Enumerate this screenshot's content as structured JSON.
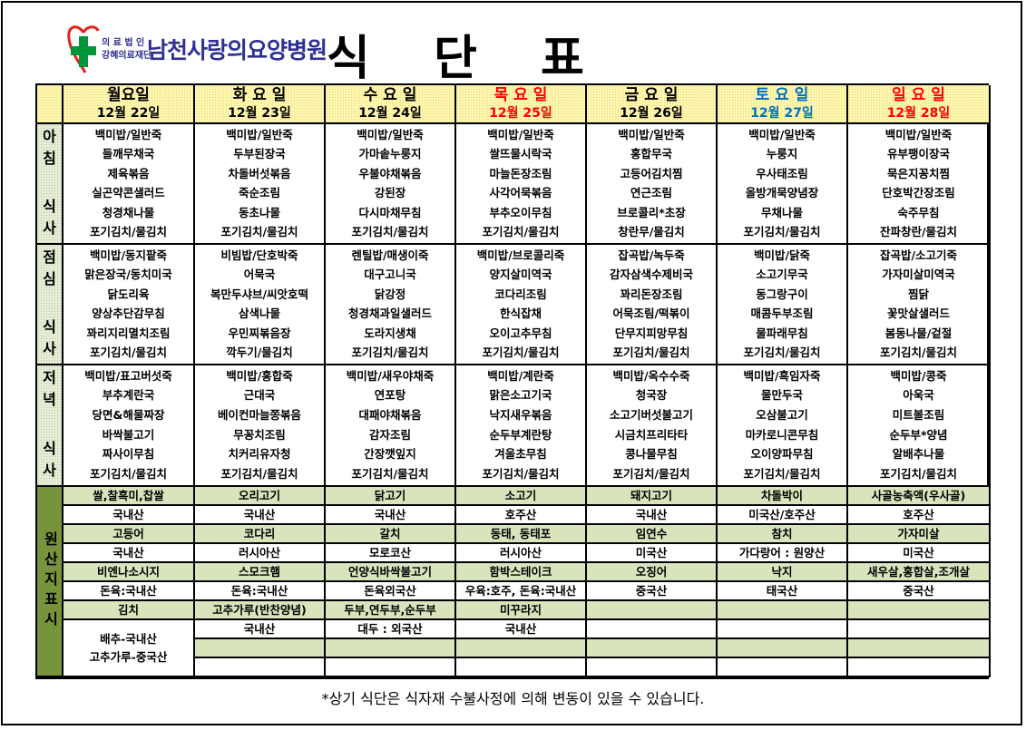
{
  "logo": {
    "small_top": "의 료 법 인",
    "small_bottom": "강혜의료재단",
    "name": "남천사랑의요양병원"
  },
  "title": [
    "식",
    "단",
    "표"
  ],
  "colors": {
    "header_bg": "#fff6b0",
    "origin_label_bg": "#77933c",
    "origin_item_bg": "#d8e4bc",
    "holiday_red": "#ff0000",
    "saturday_blue": "#0070c0",
    "logo_navy": "#2e3192"
  },
  "days": [
    {
      "name": "월요일",
      "date": "12월 22일",
      "color": "#000000"
    },
    {
      "name": "화 요 일",
      "date": "12월 23일",
      "color": "#000000"
    },
    {
      "name": "수 요 일",
      "date": "12월 24일",
      "color": "#000000"
    },
    {
      "name": "목 요 일",
      "date": "12월 25일",
      "color": "#ff0000"
    },
    {
      "name": "금 요 일",
      "date": "12월 26일",
      "color": "#000000"
    },
    {
      "name": "토 요 일",
      "date": "12월 27일",
      "color": "#0070c0"
    },
    {
      "name": "일 요 일",
      "date": "12월 28일",
      "color": "#ff0000"
    }
  ],
  "meals": [
    {
      "label_top": "아\n침",
      "label_bottom": "식\n사",
      "menus": [
        [
          "백미밥/일반죽",
          "들깨무채국",
          "제육볶음",
          "실곤약콘샐러드",
          "청경채나물",
          "포기김치/물김치"
        ],
        [
          "백미밥/일반죽",
          "두부된장국",
          "차돌버섯볶음",
          "죽순조림",
          "동초나물",
          "포기김치/물김치"
        ],
        [
          "백미밥/일반죽",
          "가마솥누룽지",
          "우불야채볶음",
          "강된장",
          "다시마채무침",
          "포기김치/물김치"
        ],
        [
          "백미밥/일반죽",
          "쌀뜨물시락국",
          "마늘돈장조림",
          "사각어묵볶음",
          "부추오이무침",
          "포기김치/물김치"
        ],
        [
          "백미밥/일반죽",
          "홍합무국",
          "고등어김치찜",
          "연근조림",
          "브로콜리*초장",
          "창란무/물김치"
        ],
        [
          "백미밥/일반죽",
          "누룽지",
          "우사태조림",
          "올방개묵양념장",
          "무채나물",
          "포기김치/물김치"
        ],
        [
          "백미밥/일반죽",
          "유부팽이장국",
          "묵은지꽁치찜",
          "단호박간장조림",
          "숙주무침",
          "잔파창란/물김치"
        ]
      ]
    },
    {
      "label_top": "점\n심",
      "label_bottom": "식\n사",
      "menus": [
        [
          "백미밥/동지팥죽",
          "맑은장국/동치미국",
          "닭도리육",
          "양상추단감무침",
          "꽈리지리멸치조림",
          "포기김치/물김치"
        ],
        [
          "비빔밥/단호박죽",
          "어묵국",
          "복만두샤브/씨앗호떡",
          "삼색나물",
          "우민찌볶음장",
          "깍두기/물김치"
        ],
        [
          "렌틸밥/매생이죽",
          "대구고니국",
          "닭강정",
          "청경채과일샐러드",
          "도라지생채",
          "포기김치/물김치"
        ],
        [
          "백미밥/브로콜리죽",
          "양지살미역국",
          "코다리조림",
          "한식잡채",
          "오이고추무침",
          "포기김치/물김치"
        ],
        [
          "잡곡밥/녹두죽",
          "감자삼색수제비국",
          "꽈리돈장조림",
          "어묵조림/떡볶이",
          "단무지피망무침",
          "포기김치/물김치"
        ],
        [
          "백미밥/닭죽",
          "소고기무국",
          "동그랑구이",
          "매콤두부조림",
          "물파래무침",
          "포기김치/물김치"
        ],
        [
          "잡곡밥/소고기죽",
          "가자미살미역국",
          "찜닭",
          "꽃맛살샐러드",
          "봄동나물/겉절",
          "포기김치/물김치"
        ]
      ]
    },
    {
      "label_top": "저\n녁",
      "label_bottom": "식\n사",
      "menus": [
        [
          "백미밥/표고버섯죽",
          "부추계란국",
          "당면&해물짜장",
          "바싹불고기",
          "짜사이무침",
          "포기김치/물김치"
        ],
        [
          "백미밥/홍합죽",
          "근대국",
          "베이컨마늘쫑볶음",
          "무꽁치조림",
          "치커리유자청",
          "포기김치/물김치"
        ],
        [
          "백미밥/새우야채죽",
          "연포탕",
          "대패야채볶음",
          "감자조림",
          "간장깻잎지",
          "포기김치/물김치"
        ],
        [
          "백미밥/계란죽",
          "맑은소고기국",
          "낙지새우볶음",
          "순두부계란탕",
          "겨울초무침",
          "포기김치/물김치"
        ],
        [
          "백미밥/옥수수죽",
          "청국장",
          "소고기버섯불고기",
          "시금치프리타타",
          "콩나물무침",
          "포기김치/물김치"
        ],
        [
          "백미밥/흑임자죽",
          "물만두국",
          "오삼불고기",
          "마카로니콘무침",
          "오이양파무침",
          "포기김치/물김치"
        ],
        [
          "백미밥/콩죽",
          "아욱국",
          "미트볼조림",
          "순두부*양념",
          "알배추나물",
          "포기김치/물김치"
        ]
      ]
    }
  ],
  "origin": {
    "label": "원산지표시",
    "columns": [
      [
        [
          "쌀,찰흑미,찹쌀",
          "국내산"
        ],
        [
          "고등어",
          "국내산"
        ],
        [
          "비엔나소시지",
          "돈육:국내산"
        ],
        [
          "김치",
          "배추-국내산\n고추가루-중국산"
        ]
      ],
      [
        [
          "오리고기",
          "국내산"
        ],
        [
          "코다리",
          "러시아산"
        ],
        [
          "스모크햄",
          "돈육:국내산"
        ],
        [
          "고추가루(반찬양념)",
          "국내산"
        ],
        [
          "",
          ""
        ]
      ],
      [
        [
          "닭고기",
          "국내산"
        ],
        [
          "갈치",
          "모로코산"
        ],
        [
          "언양식바싹불고기",
          "돈육외국산"
        ],
        [
          "두부,연두부,순두부",
          "대두 : 외국산"
        ],
        [
          "",
          ""
        ]
      ],
      [
        [
          "소고기",
          "호주산"
        ],
        [
          "동태, 동태포",
          "러시아산"
        ],
        [
          "함박스테이크",
          "우육:호주, 돈육:국내산"
        ],
        [
          "미꾸라지",
          "국내산"
        ],
        [
          "",
          ""
        ]
      ],
      [
        [
          "돼지고기",
          "국내산"
        ],
        [
          "임연수",
          "미국산"
        ],
        [
          "오징어",
          "중국산"
        ],
        [
          "",
          ""
        ],
        [
          "",
          ""
        ]
      ],
      [
        [
          "차돌박이",
          "미국산/호주산"
        ],
        [
          "참치",
          "가다랑어 : 원양산"
        ],
        [
          "낙지",
          "태국산"
        ],
        [
          "",
          ""
        ],
        [
          "",
          ""
        ]
      ],
      [
        [
          "사골농축액(우사골)",
          "호주산"
        ],
        [
          "가자미살",
          "미국산"
        ],
        [
          "새우살,홍합살,조개살",
          "중국산"
        ],
        [
          "",
          ""
        ],
        [
          "",
          ""
        ]
      ]
    ]
  },
  "footer_note": "*상기 식단은 식자재 수불사정에 의해 변동이 있을 수 있습니다."
}
